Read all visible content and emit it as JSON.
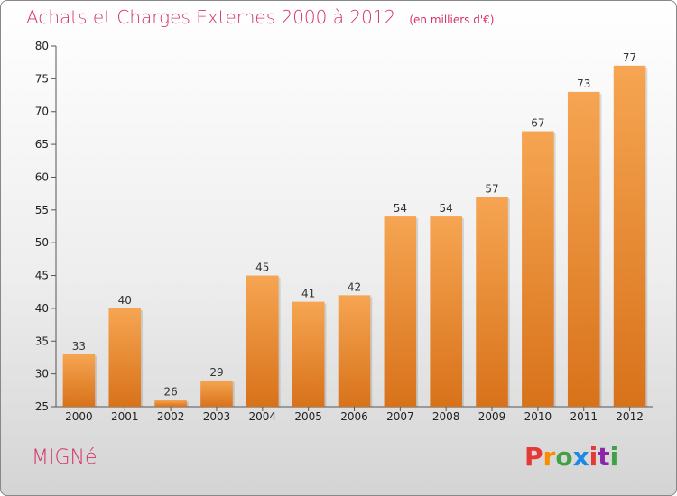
{
  "title": "Achats et Charges Externes 2000 à 2012",
  "unit": "(en milliers d'€)",
  "commune": "MIGNé",
  "logo": {
    "letters": [
      "P",
      "r",
      "o",
      "x",
      "i",
      "t",
      "i"
    ],
    "colors": [
      "#e53935",
      "#fb8c00",
      "#43a047",
      "#1e88e5",
      "#e53935",
      "#8e24aa",
      "#43a047"
    ]
  },
  "colors": {
    "bar_top": "#f6a552",
    "bar_bottom": "#d8721a",
    "title": "#d6336c"
  },
  "chart_data": {
    "type": "bar",
    "title": "Achats et Charges Externes 2000 à 2012",
    "subtitle": "(en milliers d'€)",
    "categories": [
      "2000",
      "2001",
      "2002",
      "2003",
      "2004",
      "2005",
      "2006",
      "2007",
      "2008",
      "2009",
      "2010",
      "2011",
      "2012"
    ],
    "values": [
      33,
      40,
      26,
      29,
      45,
      41,
      42,
      54,
      54,
      57,
      67,
      73,
      77
    ],
    "ylim": [
      25,
      80
    ],
    "yticks": [
      25,
      30,
      35,
      40,
      45,
      50,
      55,
      60,
      65,
      70,
      75,
      80
    ],
    "grid": false,
    "xlabel": "",
    "ylabel": ""
  }
}
